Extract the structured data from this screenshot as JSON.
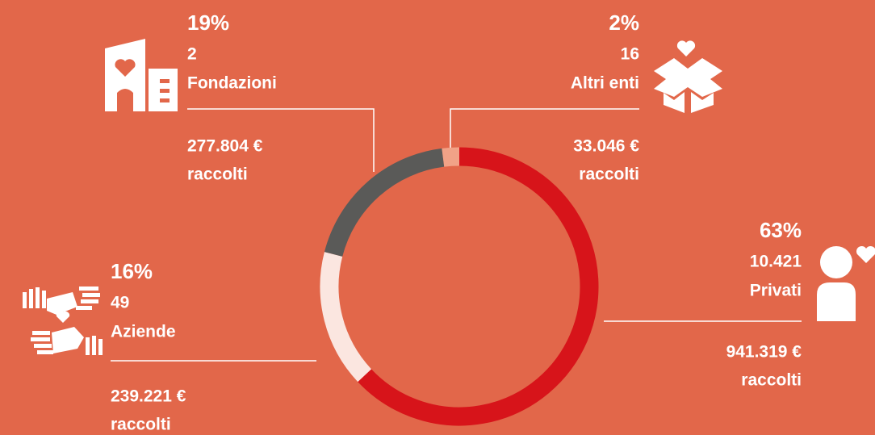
{
  "chart_data": {
    "type": "donut",
    "categories": [
      "Privati",
      "Aziende",
      "Fondazioni",
      "Altri enti"
    ],
    "values": [
      63,
      16,
      19,
      2
    ],
    "value_labels": [
      "63%",
      "16%",
      "19%",
      "2%"
    ],
    "count_labels": [
      "10.421",
      "49",
      "2",
      "16"
    ],
    "amount_labels": [
      "941.319 €",
      "239.221 €",
      "277.804 €",
      "33.046 €"
    ],
    "amount_caption": "raccolti",
    "colors": [
      "#d7141a",
      "#fbe6e0",
      "#5a5a58",
      "#f1a287"
    ]
  }
}
